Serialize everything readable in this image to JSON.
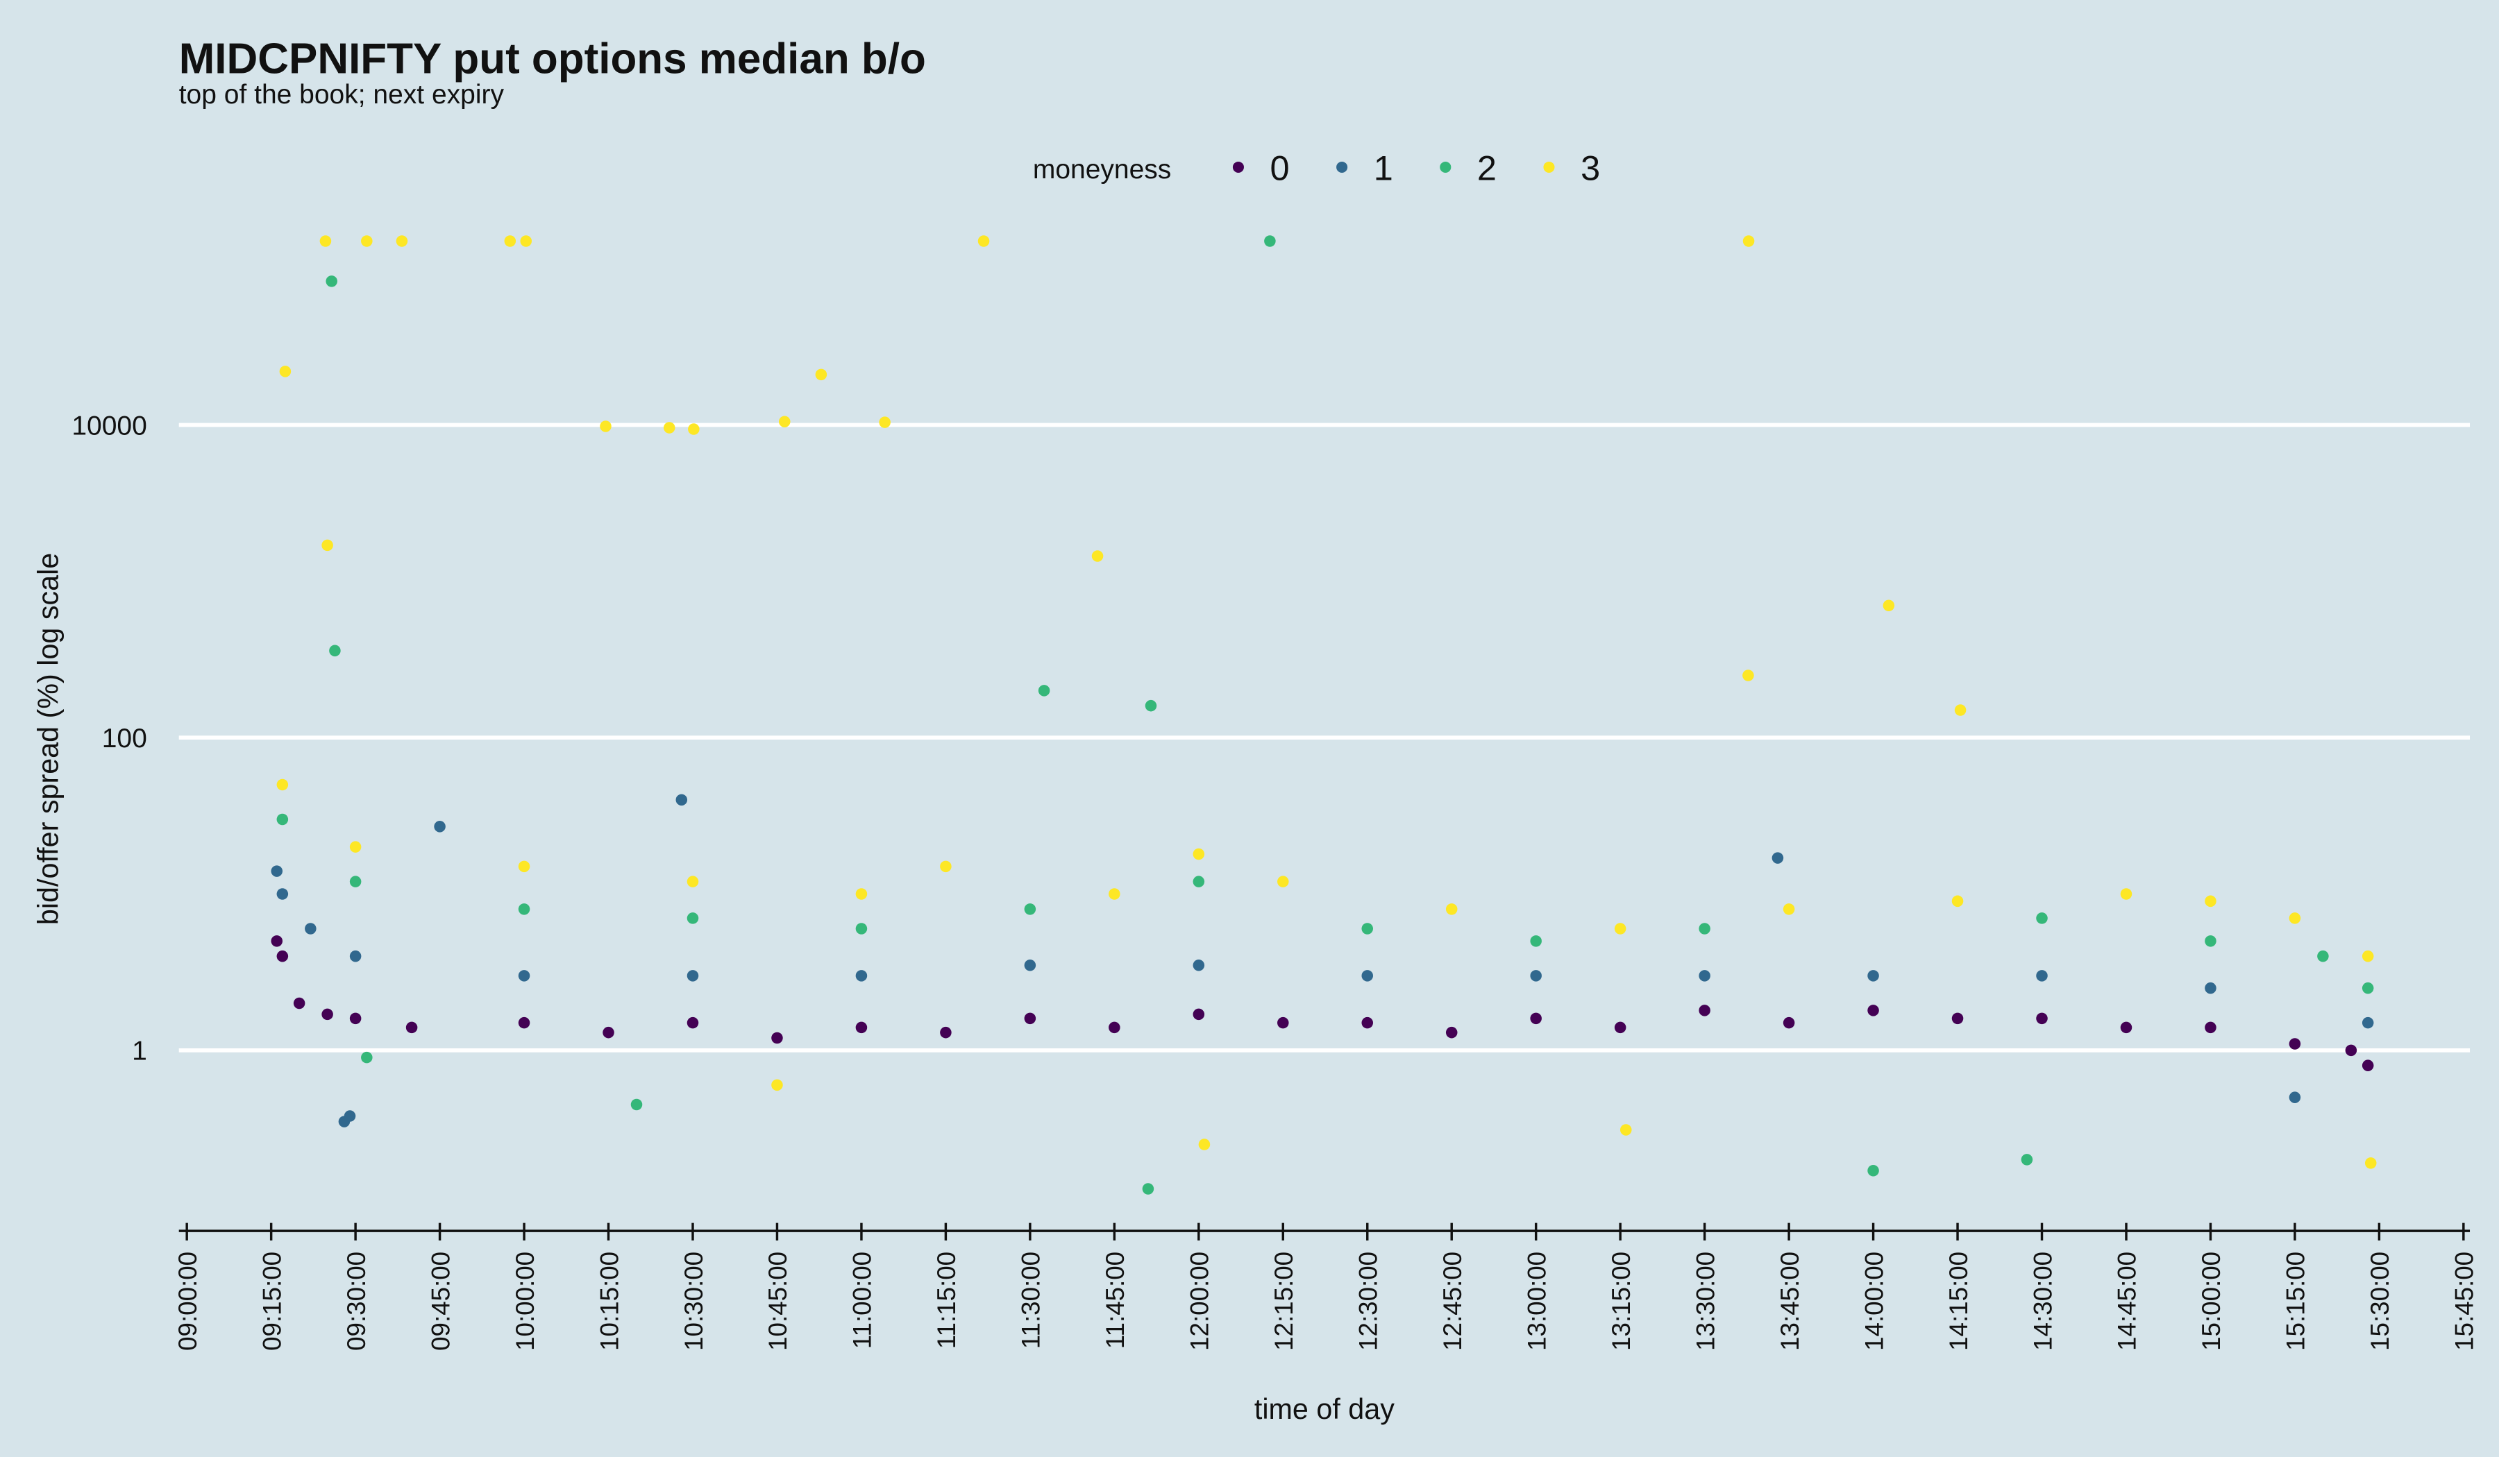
{
  "chart_data": {
    "type": "scatter",
    "title": "MIDCPNIFTY put options median b/o",
    "subtitle": "top of the book; next expiry",
    "x_label": "time of day",
    "y_label": "bid/offer spread (%) log scale",
    "legend_title": "moneyness",
    "legend_position": "top",
    "log_y": true,
    "grid": true,
    "xlim": [
      "09:00:00",
      "15:45:00"
    ],
    "xticks": [
      "09:00:00",
      "09:15:00",
      "09:30:00",
      "09:45:00",
      "10:00:00",
      "10:15:00",
      "10:30:00",
      "10:45:00",
      "11:00:00",
      "11:15:00",
      "11:30:00",
      "11:45:00",
      "12:00:00",
      "12:15:00",
      "12:30:00",
      "12:45:00",
      "13:00:00",
      "13:15:00",
      "13:30:00",
      "13:45:00",
      "14:00:00",
      "14:15:00",
      "14:30:00",
      "14:45:00",
      "15:00:00",
      "15:15:00",
      "15:30:00",
      "15:45:00"
    ],
    "ylim": [
      0.07,
      155000
    ],
    "yticks": [
      1,
      100,
      10000
    ],
    "series": [
      {
        "name": "0",
        "color": "#440154",
        "x": [
          "09:16:00",
          "09:17:00",
          "09:20:00",
          "09:25:00",
          "09:30:00",
          "09:40:00",
          "10:00:00",
          "10:15:00",
          "10:30:00",
          "10:45:00",
          "11:00:00",
          "11:15:00",
          "11:30:00",
          "11:45:00",
          "12:00:00",
          "12:15:00",
          "12:30:00",
          "12:45:00",
          "13:00:00",
          "13:15:00",
          "13:30:00",
          "13:45:00",
          "14:00:00",
          "14:15:00",
          "14:30:00",
          "14:45:00",
          "15:00:00",
          "15:15:00",
          "15:25:00",
          "15:28:00"
        ],
        "values": [
          5,
          4,
          2,
          1.7,
          1.6,
          1.4,
          1.5,
          1.3,
          1.5,
          1.2,
          1.4,
          1.3,
          1.6,
          1.4,
          1.7,
          1.5,
          1.5,
          1.3,
          1.6,
          1.4,
          1.8,
          1.5,
          1.8,
          1.6,
          1.6,
          1.4,
          1.4,
          1.1,
          1,
          0.8
        ]
      },
      {
        "name": "1",
        "color": "#31688e",
        "x": [
          "09:16:00",
          "09:17:00",
          "09:22:00",
          "09:28:00",
          "09:29:00",
          "09:30:00",
          "09:45:00",
          "10:00:00",
          "10:28:00",
          "10:30:00",
          "11:00:00",
          "11:30:00",
          "12:00:00",
          "12:30:00",
          "13:00:00",
          "13:30:00",
          "13:43:00",
          "14:00:00",
          "14:30:00",
          "15:00:00",
          "15:15:00",
          "15:28:00"
        ],
        "values": [
          14,
          10,
          6,
          0.35,
          0.38,
          4,
          27,
          3,
          40,
          3,
          3,
          3.5,
          3.5,
          3,
          3,
          3,
          17,
          3,
          3,
          2.5,
          0.5,
          1.5
        ]
      },
      {
        "name": "2",
        "color": "#35b779",
        "x": [
          "09:17:00",
          "09:25:45",
          "09:26:20",
          "09:30:00",
          "09:32:00",
          "10:00:00",
          "10:20:00",
          "10:30:00",
          "11:00:00",
          "11:30:00",
          "11:32:30",
          "11:51:00",
          "11:51:30",
          "12:00:00",
          "12:12:40",
          "12:30:00",
          "13:00:00",
          "13:30:00",
          "14:00:00",
          "14:27:20",
          "14:30:00",
          "15:00:00",
          "15:20:00",
          "15:28:00"
        ],
        "values": [
          30,
          83000,
          360,
          12,
          0.9,
          8,
          0.45,
          7,
          6,
          8,
          200,
          0.13,
          160,
          12,
          150000,
          6,
          5,
          6,
          0.17,
          0.2,
          7,
          5,
          4,
          2.5
        ]
      },
      {
        "name": "3",
        "color": "#fde725",
        "x": [
          "09:17:00",
          "09:17:30",
          "09:24:40",
          "09:25:00",
          "09:30:00",
          "09:32:00",
          "09:38:15",
          "09:57:30",
          "10:00:00",
          "10:00:20",
          "10:14:30",
          "10:25:50",
          "10:30:00",
          "10:30:10",
          "10:45:00",
          "10:46:20",
          "10:52:50",
          "11:00:00",
          "11:04:10",
          "11:15:00",
          "11:21:45",
          "11:42:00",
          "11:45:00",
          "12:00:00",
          "12:01:00",
          "12:15:00",
          "12:45:00",
          "13:15:00",
          "13:16:00",
          "13:37:45",
          "13:37:50",
          "13:45:00",
          "14:02:45",
          "14:15:00",
          "14:15:30",
          "14:45:00",
          "15:00:00",
          "15:15:00",
          "15:28:00",
          "15:28:30"
        ],
        "values": [
          50,
          22000,
          150000,
          1700,
          20,
          150000,
          150000,
          150000,
          15,
          150000,
          9800,
          9600,
          12,
          9400,
          0.6,
          10500,
          21000,
          10,
          10400,
          15,
          150000,
          1450,
          10,
          18,
          0.25,
          12,
          8,
          6,
          0.31,
          250,
          150000,
          8,
          700,
          9,
          150,
          10,
          9,
          7,
          4,
          0.19
        ]
      }
    ]
  }
}
